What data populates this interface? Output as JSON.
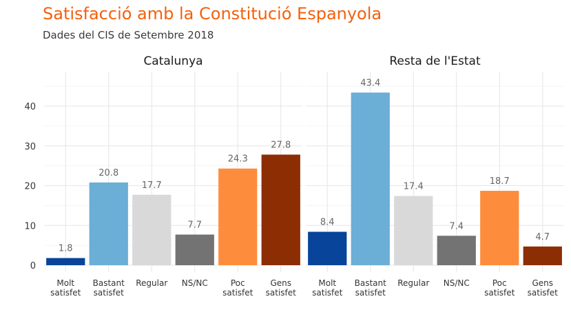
{
  "title": "Satisfacció amb la Constitució Espanyola",
  "subtitle": "Dades del CIS de Setembre 2018",
  "chart_data": {
    "type": "bar",
    "categories": [
      "Molt satisfet",
      "Bastant satisfet",
      "Regular",
      "NS/NC",
      "Poc satisfet",
      "Gens satisfet"
    ],
    "colors": [
      "#08459a",
      "#6baed6",
      "#d9d9d9",
      "#737373",
      "#fd8d3c",
      "#8c2d04"
    ],
    "ylim": [
      0,
      48
    ],
    "yticks": [
      0,
      10,
      20,
      30,
      40
    ],
    "grid": true,
    "legend": "none",
    "panels": [
      {
        "title": "Catalunya",
        "values": [
          1.8,
          20.8,
          17.7,
          7.7,
          24.3,
          27.8
        ]
      },
      {
        "title": "Resta de l'Estat",
        "values": [
          8.4,
          43.4,
          17.4,
          7.4,
          18.7,
          4.7
        ]
      }
    ]
  }
}
